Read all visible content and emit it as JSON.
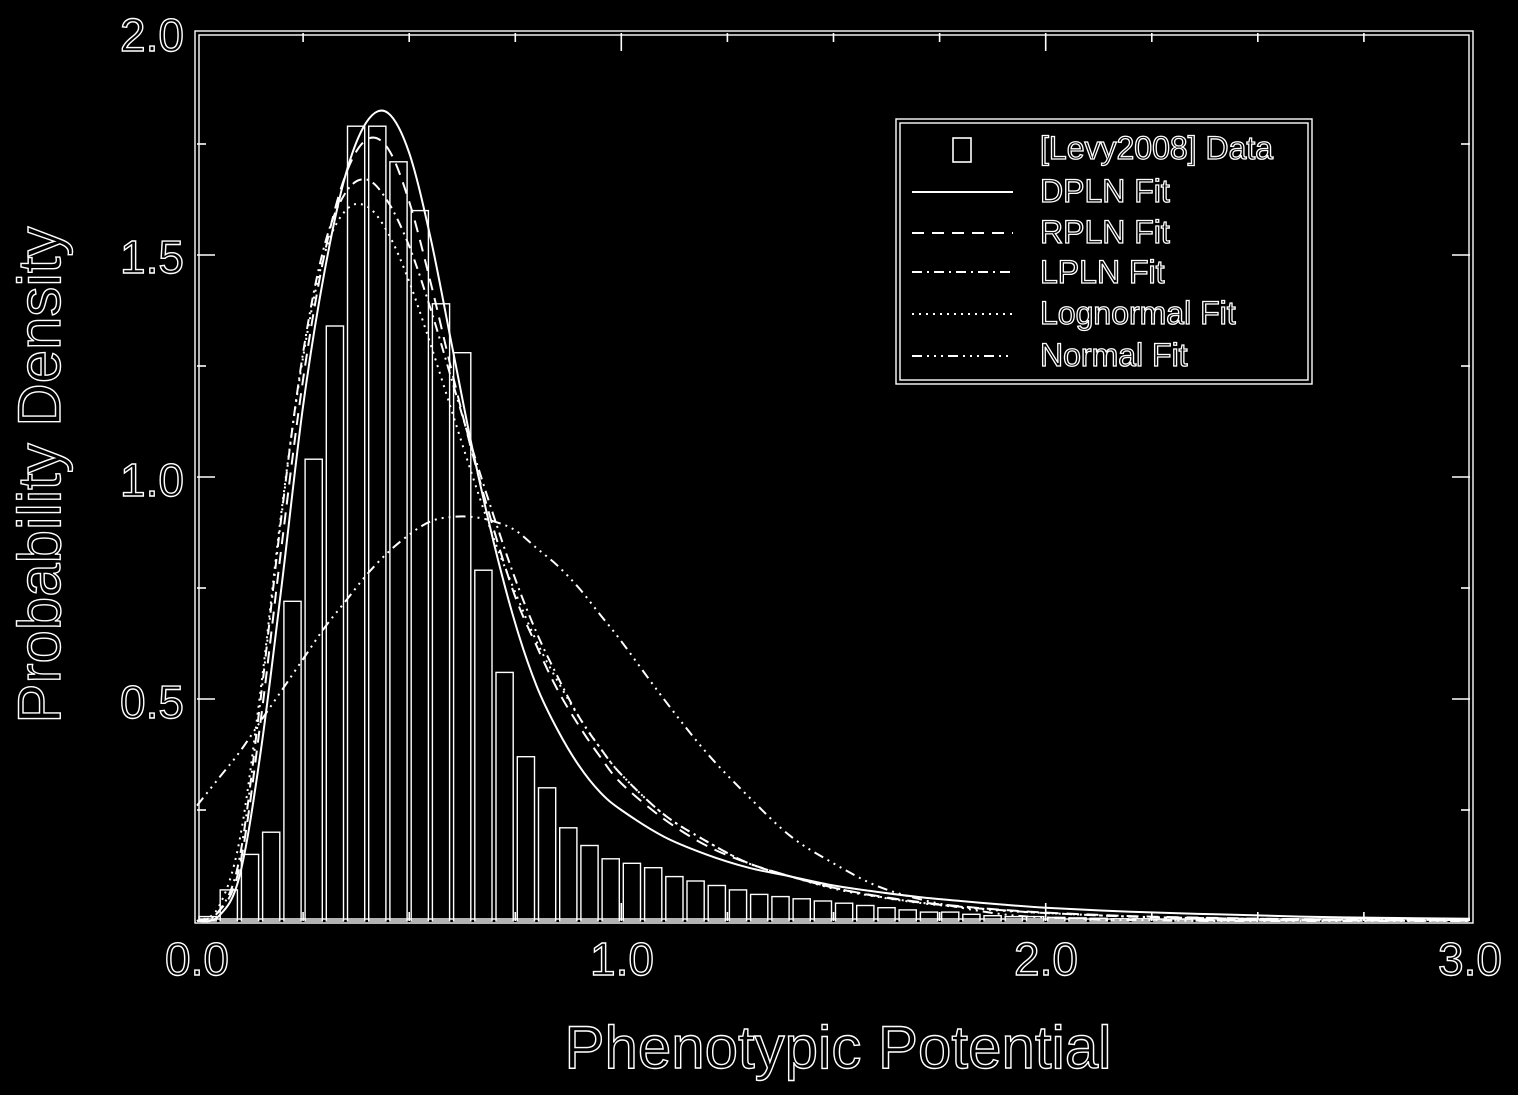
{
  "colors": {
    "background": "#000000",
    "foreground": "#ffffff"
  },
  "chart_data": {
    "type": "bar",
    "title": "",
    "xlabel": "Phenotypic Potential",
    "ylabel": "Probability Density",
    "xlim": [
      0.0,
      3.0
    ],
    "ylim": [
      0.0,
      2.0
    ],
    "x_ticks": [
      "0.0",
      "1.0",
      "2.0",
      "3.0"
    ],
    "y_ticks": [
      "0.5",
      "1.0",
      "1.5",
      "2.0"
    ],
    "grid": false,
    "legend": {
      "placement": "top-right",
      "entries": [
        "[Levy2008] Data",
        "DPLN Fit",
        "RPLN Fit",
        "LPLN Fit",
        "Lognormal Fit",
        "Normal Fit"
      ]
    },
    "histogram": {
      "name": "[Levy2008] Data",
      "bin_width": 0.05,
      "bin_starts": [
        0.0,
        0.05,
        0.1,
        0.15,
        0.2,
        0.25,
        0.3,
        0.35,
        0.4,
        0.45,
        0.5,
        0.55,
        0.6,
        0.65,
        0.7,
        0.75,
        0.8,
        0.85,
        0.9,
        0.95,
        1.0,
        1.05,
        1.1,
        1.15,
        1.2,
        1.25,
        1.3,
        1.35,
        1.4,
        1.45,
        1.5,
        1.55,
        1.6,
        1.65,
        1.7,
        1.75,
        1.8,
        1.85,
        1.9,
        1.95,
        2.0,
        2.05,
        2.1,
        2.15,
        2.2,
        2.25,
        2.3,
        2.35,
        2.4,
        2.45,
        2.5,
        2.55,
        2.6,
        2.65,
        2.7,
        2.75,
        2.8,
        2.85,
        2.9,
        2.95
      ],
      "density": [
        0.01,
        0.07,
        0.15,
        0.2,
        0.72,
        1.04,
        1.34,
        1.79,
        1.79,
        1.71,
        1.6,
        1.39,
        1.28,
        0.79,
        0.56,
        0.37,
        0.3,
        0.21,
        0.17,
        0.14,
        0.13,
        0.12,
        0.1,
        0.09,
        0.08,
        0.07,
        0.06,
        0.055,
        0.05,
        0.045,
        0.04,
        0.035,
        0.03,
        0.025,
        0.02,
        0.02,
        0.015,
        0.012,
        0.01,
        0.01,
        0.008,
        0.007,
        0.006,
        0.005,
        0.005,
        0.004,
        0.004,
        0.003,
        0.003,
        0.003,
        0.002,
        0.002,
        0.002,
        0.002,
        0.001,
        0.001,
        0.001,
        0.001,
        0.001,
        0.001
      ]
    },
    "series": [
      {
        "name": "DPLN Fit",
        "x": [
          0.0,
          0.05,
          0.1,
          0.15,
          0.2,
          0.25,
          0.3,
          0.35,
          0.4,
          0.45,
          0.5,
          0.55,
          0.6,
          0.65,
          0.7,
          0.75,
          0.8,
          0.85,
          0.9,
          0.95,
          1.0,
          1.1,
          1.2,
          1.3,
          1.4,
          1.5,
          1.6,
          1.7,
          1.8,
          1.9,
          2.0,
          2.2,
          2.4,
          2.6,
          2.8,
          3.0
        ],
        "y": [
          0.0,
          0.01,
          0.1,
          0.38,
          0.76,
          1.16,
          1.46,
          1.68,
          1.8,
          1.82,
          1.73,
          1.54,
          1.3,
          1.06,
          0.85,
          0.67,
          0.53,
          0.43,
          0.35,
          0.29,
          0.25,
          0.19,
          0.15,
          0.12,
          0.1,
          0.08,
          0.066,
          0.054,
          0.045,
          0.037,
          0.03,
          0.021,
          0.015,
          0.01,
          0.007,
          0.005
        ]
      },
      {
        "name": "RPLN Fit",
        "x": [
          0.0,
          0.05,
          0.1,
          0.15,
          0.2,
          0.25,
          0.3,
          0.35,
          0.4,
          0.45,
          0.5,
          0.55,
          0.6,
          0.65,
          0.7,
          0.75,
          0.8,
          0.85,
          0.9,
          0.95,
          1.0,
          1.1,
          1.2,
          1.3,
          1.4,
          1.5,
          1.6,
          1.7,
          1.8,
          1.9,
          2.0,
          2.2,
          2.4,
          2.6,
          2.8,
          3.0
        ],
        "y": [
          0.0,
          0.02,
          0.12,
          0.45,
          0.85,
          1.22,
          1.5,
          1.68,
          1.76,
          1.74,
          1.62,
          1.44,
          1.24,
          1.05,
          0.88,
          0.73,
          0.62,
          0.52,
          0.44,
          0.37,
          0.31,
          0.23,
          0.17,
          0.13,
          0.1,
          0.075,
          0.057,
          0.043,
          0.033,
          0.025,
          0.019,
          0.011,
          0.007,
          0.004,
          0.003,
          0.002
        ]
      },
      {
        "name": "LPLN Fit",
        "x": [
          0.0,
          0.05,
          0.1,
          0.15,
          0.2,
          0.25,
          0.3,
          0.35,
          0.4,
          0.45,
          0.5,
          0.55,
          0.6,
          0.65,
          0.7,
          0.75,
          0.8,
          0.85,
          0.9,
          0.95,
          1.0,
          1.1,
          1.2,
          1.3,
          1.4,
          1.5,
          1.6,
          1.7,
          1.8,
          1.9,
          2.0,
          2.2,
          2.4,
          2.6,
          2.8,
          3.0
        ],
        "y": [
          0.0,
          0.02,
          0.14,
          0.5,
          0.92,
          1.28,
          1.52,
          1.64,
          1.67,
          1.62,
          1.52,
          1.38,
          1.22,
          1.06,
          0.91,
          0.77,
          0.65,
          0.55,
          0.46,
          0.39,
          0.33,
          0.24,
          0.18,
          0.13,
          0.1,
          0.075,
          0.056,
          0.042,
          0.032,
          0.024,
          0.018,
          0.01,
          0.006,
          0.004,
          0.002,
          0.001
        ]
      },
      {
        "name": "Lognormal Fit",
        "x": [
          0.0,
          0.05,
          0.1,
          0.15,
          0.2,
          0.25,
          0.3,
          0.35,
          0.4,
          0.45,
          0.5,
          0.55,
          0.6,
          0.65,
          0.7,
          0.75,
          0.8,
          0.85,
          0.9,
          0.95,
          1.0,
          1.1,
          1.2,
          1.3,
          1.4,
          1.5,
          1.6,
          1.7,
          1.8,
          1.9,
          2.0,
          2.2,
          2.4,
          2.6,
          2.8,
          3.0
        ],
        "y": [
          0.0,
          0.03,
          0.18,
          0.52,
          0.93,
          1.27,
          1.5,
          1.6,
          1.61,
          1.55,
          1.44,
          1.3,
          1.15,
          1.0,
          0.86,
          0.74,
          0.63,
          0.54,
          0.46,
          0.39,
          0.33,
          0.24,
          0.18,
          0.13,
          0.1,
          0.073,
          0.055,
          0.041,
          0.031,
          0.023,
          0.018,
          0.01,
          0.006,
          0.004,
          0.002,
          0.001
        ]
      },
      {
        "name": "Normal Fit",
        "x": [
          0.0,
          0.05,
          0.1,
          0.15,
          0.2,
          0.25,
          0.3,
          0.35,
          0.4,
          0.45,
          0.5,
          0.55,
          0.6,
          0.65,
          0.7,
          0.75,
          0.8,
          0.85,
          0.9,
          0.95,
          1.0,
          1.1,
          1.2,
          1.3,
          1.4,
          1.5,
          1.6,
          1.7,
          1.8,
          1.9,
          2.0,
          2.2,
          2.4,
          2.6,
          2.8,
          3.0
        ],
        "y": [
          0.26,
          0.32,
          0.38,
          0.45,
          0.52,
          0.59,
          0.66,
          0.72,
          0.78,
          0.83,
          0.87,
          0.9,
          0.91,
          0.91,
          0.9,
          0.88,
          0.84,
          0.8,
          0.75,
          0.69,
          0.63,
          0.5,
          0.38,
          0.28,
          0.19,
          0.13,
          0.08,
          0.05,
          0.03,
          0.015,
          0.008,
          0.002,
          0.0,
          0.0,
          0.0,
          0.0
        ]
      }
    ]
  }
}
